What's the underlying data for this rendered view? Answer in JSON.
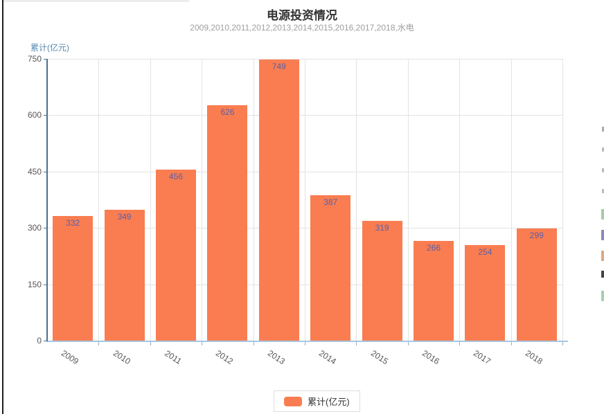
{
  "header": {
    "title": "电源投资情况",
    "subtitle": "2009,2010,2011,2012,2013,2014,2015,2016,2017,2018,水电"
  },
  "chart_data": {
    "type": "bar",
    "title": "电源投资情况",
    "subtitle": "2009,2010,2011,2012,2013,2014,2015,2016,2017,2018,水电",
    "y_axis_name": "累计(亿元)",
    "categories": [
      "2009",
      "2010",
      "2011",
      "2012",
      "2013",
      "2014",
      "2015",
      "2016",
      "2017",
      "2018"
    ],
    "series": [
      {
        "name": "累计(亿元)",
        "values": [
          332,
          349,
          456,
          626,
          749,
          387,
          319,
          266,
          254,
          299
        ]
      }
    ],
    "ylim": [
      0,
      750
    ],
    "y_ticks": [
      0,
      150,
      300,
      450,
      600,
      750
    ],
    "grid": true,
    "legend_position": "bottom",
    "bar_color": "#f97d51",
    "value_label_color": "#5a5fa8",
    "axis_name_color": "#5589b0"
  },
  "legend": {
    "label": "累计(亿元)"
  },
  "right_edge_fragments": [
    {
      "y": 183,
      "h": 7,
      "w": 3,
      "color": "#aaaaaa"
    },
    {
      "y": 213,
      "h": 6,
      "w": 3,
      "color": "#bbbbbb"
    },
    {
      "y": 243,
      "h": 6,
      "w": 3,
      "color": "#bbbbbb"
    },
    {
      "y": 273,
      "h": 6,
      "w": 3,
      "color": "#bbbbbb"
    },
    {
      "y": 302,
      "h": 15,
      "w": 4,
      "color": "#a8cba8"
    },
    {
      "y": 332,
      "h": 15,
      "w": 4,
      "color": "#8a8abd"
    },
    {
      "y": 362,
      "h": 15,
      "w": 4,
      "color": "#dcaa85"
    },
    {
      "y": 391,
      "h": 10,
      "w": 4,
      "color": "#444444"
    },
    {
      "y": 420,
      "h": 15,
      "w": 4,
      "color": "#a8cfad"
    }
  ]
}
